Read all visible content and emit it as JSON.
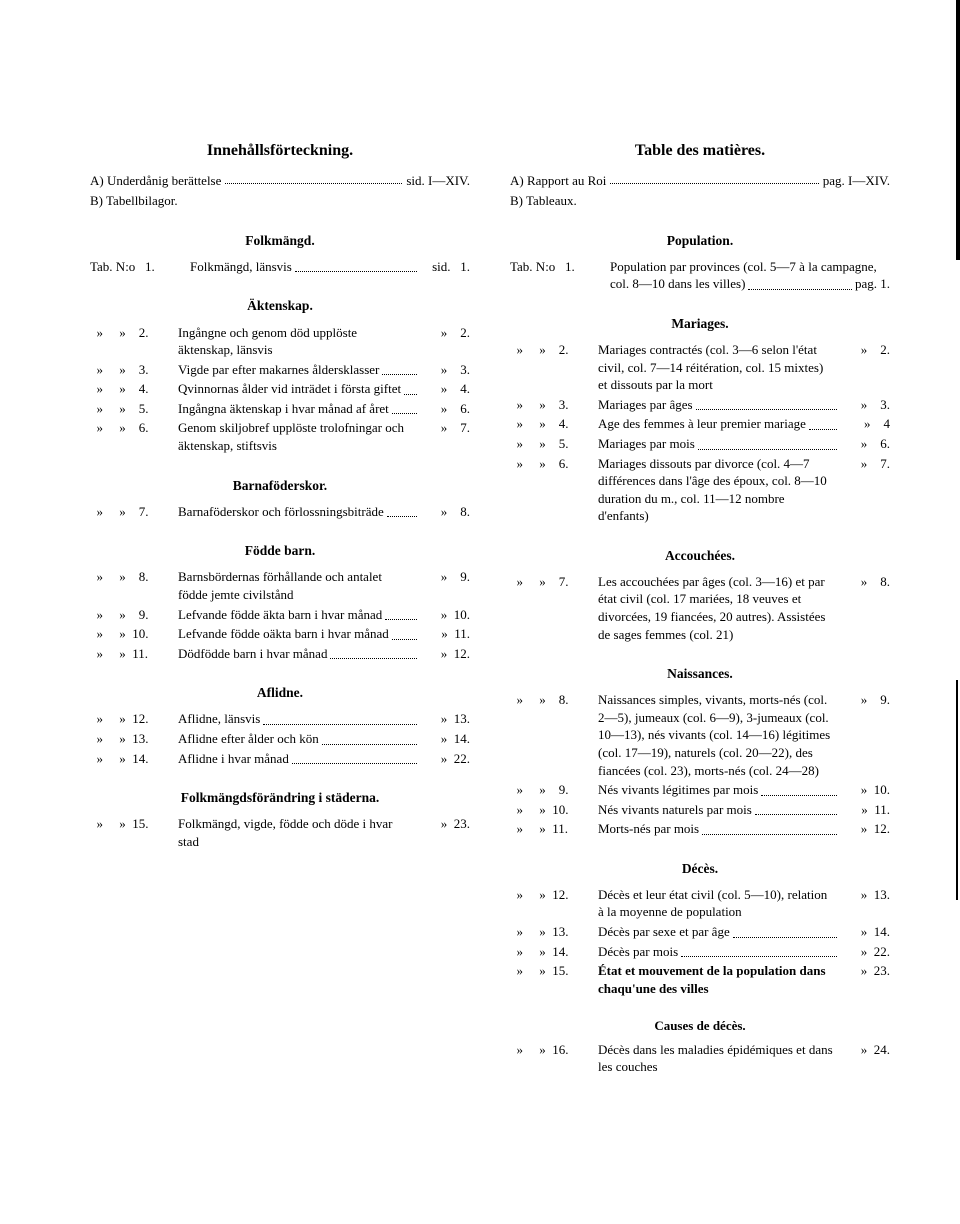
{
  "left": {
    "title": "Innehållsförteckning.",
    "intro": [
      {
        "label": "A) Underdånig berättelse",
        "page": "sid. I—XIV."
      },
      {
        "label": "B) Tabellbilagor.",
        "page": ""
      }
    ],
    "s1": {
      "head": "Folkmängd.",
      "lead": {
        "prefix": "Tab. N:o   1.",
        "text": "Folkmängd, länsvis",
        "page": "sid.   1."
      }
    },
    "s2": {
      "head": "Äktenskap.",
      "entries": [
        {
          "prefix": "  »     »    2.",
          "text": "Ingångne och genom död upplöste äktenskap, länsvis",
          "page": "»    2."
        },
        {
          "prefix": "  »     »    3.",
          "text": "Vigde par efter makarnes åldersklasser",
          "page": "»    3."
        },
        {
          "prefix": "  »     »    4.",
          "text": "Qvinnornas ålder vid inträdet i första giftet",
          "page": "»    4."
        },
        {
          "prefix": "  »     »    5.",
          "text": "Ingångna äktenskap i hvar månad af året",
          "page": "»    6."
        },
        {
          "prefix": "  »     »    6.",
          "text": "Genom skiljobref upplöste trolofningar och äktenskap, stiftsvis",
          "page": "»    7."
        }
      ]
    },
    "s3": {
      "head": "Barnaföderskor.",
      "entries": [
        {
          "prefix": "  »     »    7.",
          "text": "Barnaföderskor och förlossningsbiträde",
          "page": "»    8."
        }
      ]
    },
    "s4": {
      "head": "Födde barn.",
      "entries": [
        {
          "prefix": "  »     »    8.",
          "text": "Barnsbördernas förhållande och antalet födde jemte civilstånd",
          "page": "»    9."
        },
        {
          "prefix": "  »     »    9.",
          "text": "Lefvande födde äkta barn i hvar månad",
          "page": "»  10."
        },
        {
          "prefix": "  »     »  10.",
          "text": "Lefvande födde oäkta barn i hvar månad",
          "page": "»  11."
        },
        {
          "prefix": "  »     »  11.",
          "text": "Dödfödde barn i hvar månad",
          "page": "»  12."
        }
      ]
    },
    "s5": {
      "head": "Aflidne.",
      "entries": [
        {
          "prefix": "  »     »  12.",
          "text": "Aflidne, länsvis",
          "page": "»  13."
        },
        {
          "prefix": "  »     »  13.",
          "text": "Aflidne efter ålder och kön",
          "page": "»  14."
        },
        {
          "prefix": "  »     »  14.",
          "text": "Aflidne i hvar månad",
          "page": "»  22."
        }
      ]
    },
    "s6": {
      "head": "Folkmängdsförändring i städerna.",
      "entries": [
        {
          "prefix": "  »     »  15.",
          "text": "Folkmängd, vigde, födde och döde i hvar stad",
          "page": "»  23."
        }
      ]
    }
  },
  "right": {
    "title": "Table des matières.",
    "intro": [
      {
        "label": "A) Rapport au Roi",
        "page": "pag. I—XIV."
      },
      {
        "label": "B) Tableaux.",
        "page": ""
      }
    ],
    "s1": {
      "head": "Population.",
      "lead": {
        "prefix": "Tab. N:o   1.",
        "text": "Population par provinces (col. 5—7 à la campagne, col. 8—10 dans les villes)",
        "page": "pag.   1."
      }
    },
    "s2": {
      "head": "Mariages.",
      "entries": [
        {
          "prefix": "  »     »    2.",
          "text": "Mariages contractés (col. 3—6 selon l'état civil, col. 7—14 réitération, col. 15 mixtes) et dissouts par la mort",
          "page": "»    2."
        },
        {
          "prefix": "  »     »    3.",
          "text": "Mariages par âges",
          "page": "»    3."
        },
        {
          "prefix": "  »     »    4.",
          "text": "Age des femmes à leur premier mariage",
          "page": "»    4"
        },
        {
          "prefix": "  »     »    5.",
          "text": "Mariages par mois",
          "page": "»    6."
        },
        {
          "prefix": "  »     »    6.",
          "text": "Mariages dissouts par divorce (col. 4—7 différences dans l'âge des époux, col. 8—10 duration du m., col. 11—12 nombre d'enfants)",
          "page": "»    7."
        }
      ]
    },
    "s3": {
      "head": "Accouchées.",
      "entries": [
        {
          "prefix": "  »     »    7.",
          "text": "Les accouchées par âges (col. 3—16) et par état civil (col. 17 mariées, 18 veuves et divorcées, 19 fiancées, 20 autres). Assistées de sages femmes (col. 21)",
          "page": "»    8."
        }
      ]
    },
    "s4": {
      "head": "Naissances.",
      "entries": [
        {
          "prefix": "  »     »    8.",
          "text": "Naissances simples, vivants, morts-nés (col. 2—5), jumeaux (col. 6—9), 3-jumeaux (col. 10—13), nés vivants (col. 14—16) légitimes (col. 17—19), naturels (col. 20—22), des fiancées (col. 23), morts-nés (col. 24—28)",
          "page": "»    9."
        },
        {
          "prefix": "  »     »    9.",
          "text": "Nés vivants légitimes par mois",
          "page": "»  10."
        },
        {
          "prefix": "  »     »  10.",
          "text": "Nés vivants naturels par mois",
          "page": "»  11."
        },
        {
          "prefix": "  »     »  11.",
          "text": "Morts-nés par mois",
          "page": "»  12."
        }
      ]
    },
    "s5": {
      "head": "Décès.",
      "entries": [
        {
          "prefix": "  »     »  12.",
          "text": "Décès et leur état civil (col. 5—10), relation à la moyenne de population",
          "page": "»  13."
        },
        {
          "prefix": "  »     »  13.",
          "text": "Décès par sexe et par âge",
          "page": "»  14."
        },
        {
          "prefix": "  »     »  14.",
          "text": "Décès par mois",
          "page": "»  22."
        },
        {
          "prefix": "  »     »  15.",
          "text_bold": "État et mouvement de la population dans chaqu'une des villes",
          "page": "»  23."
        }
      ]
    },
    "s6": {
      "head": "Causes de décès.",
      "entries": [
        {
          "prefix": "  »     »  16.",
          "text": "Décès dans les maladies épidémiques et dans les couches",
          "page": "»  24."
        }
      ]
    }
  }
}
